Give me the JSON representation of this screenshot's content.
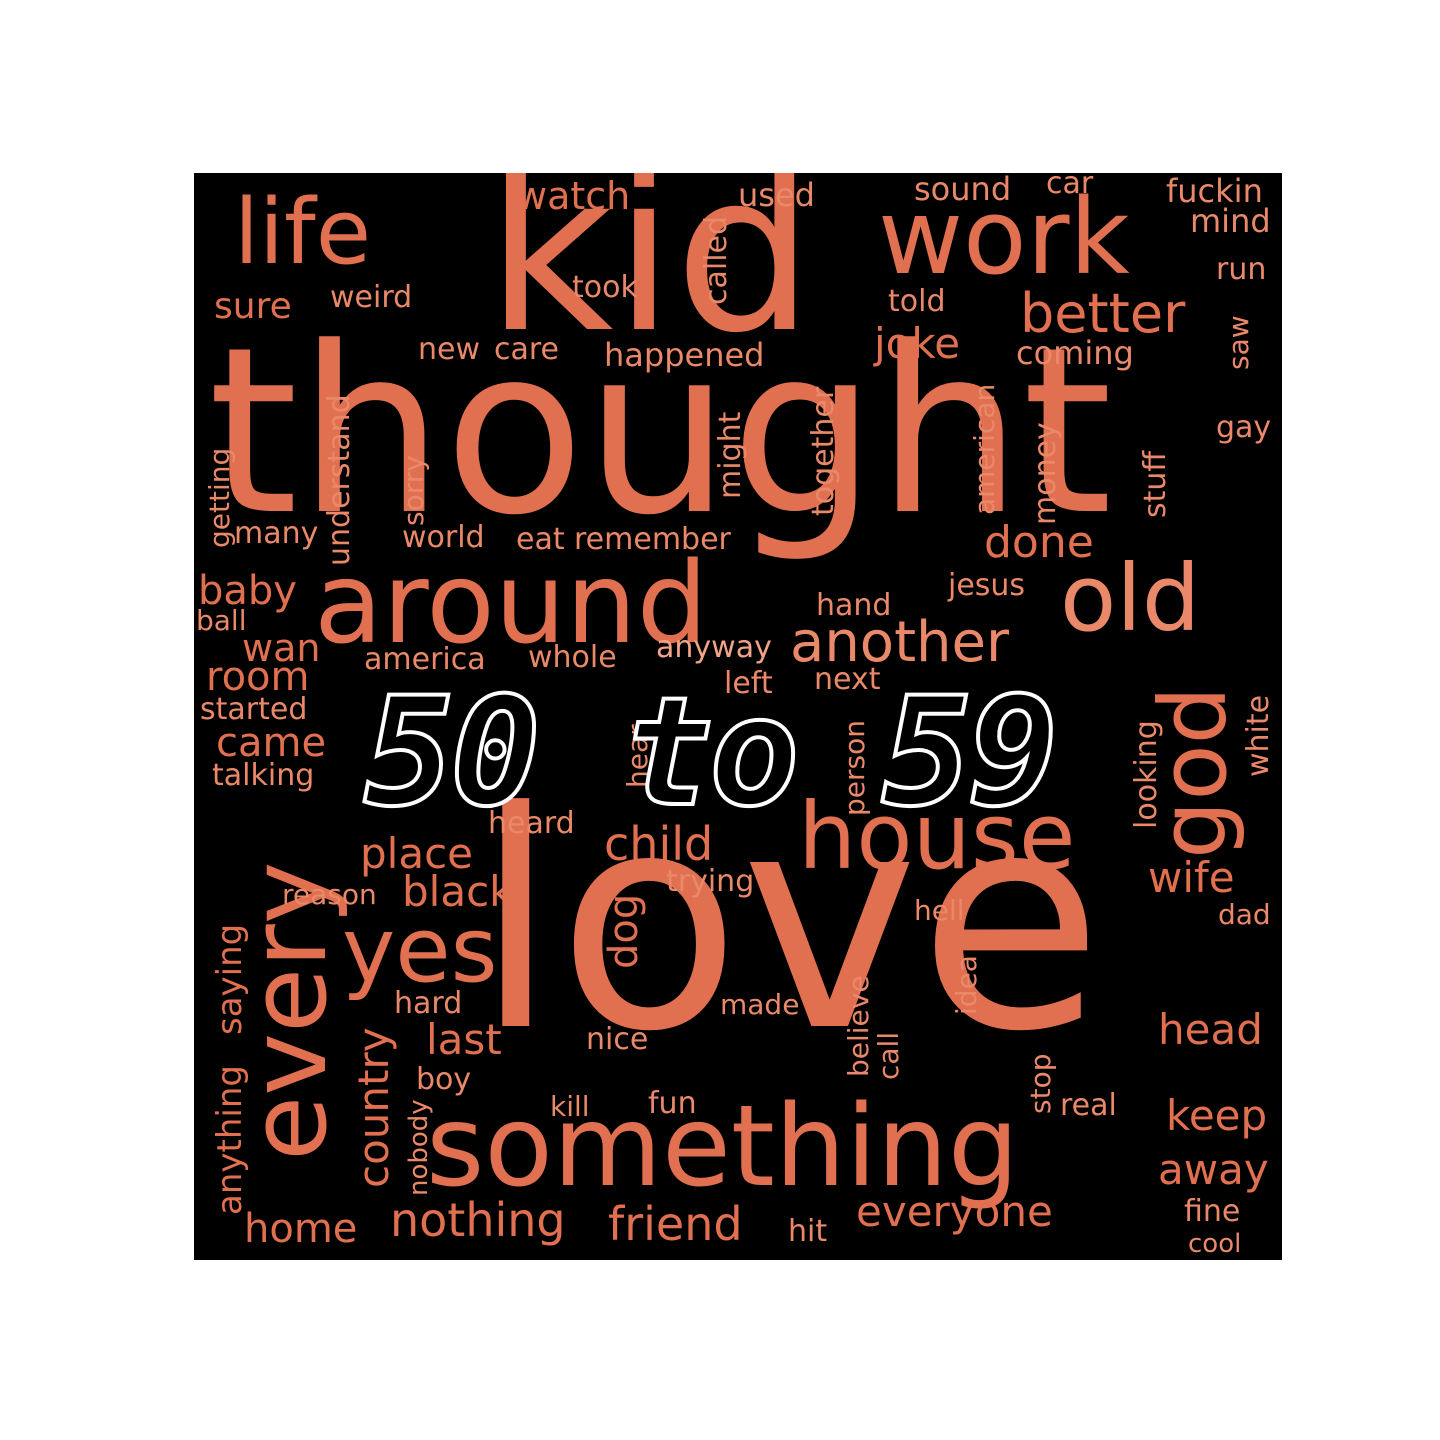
{
  "title": "50 to 59",
  "colors": {
    "background": "#000000",
    "page": "#ffffff",
    "primary_word": "#e07050",
    "light_word": "#eb9070",
    "title_outline": "#ffffff"
  },
  "words": [
    "thought",
    "love",
    "kid",
    "something",
    "around",
    "every",
    "work",
    "house",
    "yes",
    "old",
    "god",
    "life",
    "another",
    "better",
    "child",
    "done",
    "friend",
    "nothing",
    "everyone",
    "joke",
    "place",
    "wife",
    "head",
    "keep",
    "away",
    "country",
    "last",
    "black",
    "room",
    "came",
    "baby",
    "home",
    "wan",
    "dog",
    "saying",
    "anything",
    "watch",
    "sure",
    "weird",
    "took",
    "called",
    "used",
    "sound",
    "car",
    "fuckin",
    "mind",
    "run",
    "told",
    "coming",
    "happened",
    "new",
    "care",
    "saw",
    "gay",
    "stuff",
    "money",
    "american",
    "together",
    "might",
    "understand",
    "getting",
    "sorry",
    "world",
    "eat",
    "remember",
    "many",
    "jesus",
    "hand",
    "ball",
    "america",
    "whole",
    "anyway",
    "left",
    "next",
    "person",
    "hear",
    "looking",
    "white",
    "started",
    "talking",
    "heard",
    "trying",
    "reason",
    "hell",
    "dad",
    "idea",
    "believe",
    "call",
    "made",
    "hard",
    "nice",
    "boy",
    "nobody",
    "kill",
    "fun",
    "stop",
    "real",
    "fine",
    "cool",
    "hit"
  ]
}
